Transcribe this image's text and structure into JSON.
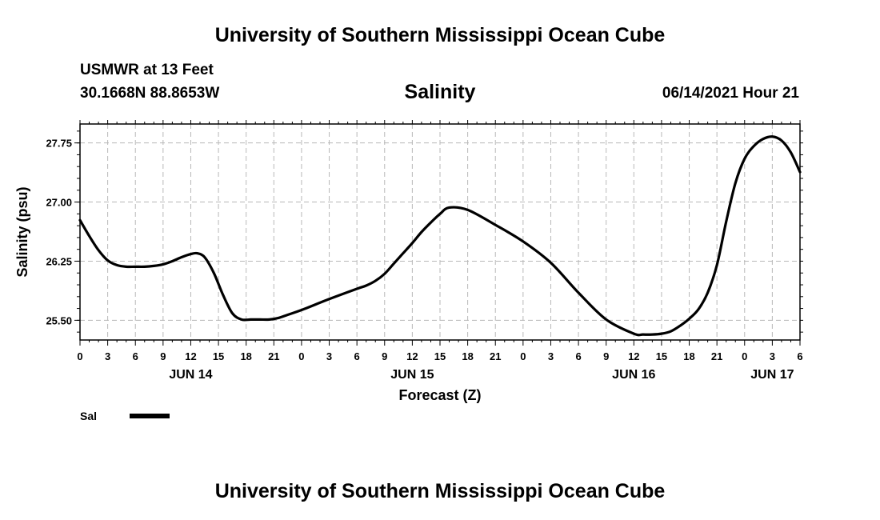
{
  "header": {
    "title": "University of Southern Mississippi Ocean Cube",
    "station": "USMWR at 13 Feet",
    "coords": "30.1668N  88.8653W",
    "timestamp": "06/14/2021 Hour 21"
  },
  "footer": {
    "title": "University of Southern Mississippi Ocean Cube"
  },
  "chart_data": {
    "type": "line",
    "title": "Salinity",
    "xlabel": "Forecast (Z)",
    "ylabel": "Salinity (psu)",
    "xlim": [
      0,
      78
    ],
    "ylim": [
      25.25,
      27.99
    ],
    "yticks": [
      25.5,
      26.25,
      27.0,
      27.75
    ],
    "ytick_labels": [
      "25.50",
      "26.25",
      "27.00",
      "27.75"
    ],
    "xticks": [
      0,
      3,
      6,
      9,
      12,
      15,
      18,
      21,
      24,
      27,
      30,
      33,
      36,
      39,
      42,
      45,
      48,
      51,
      54,
      57,
      60,
      63,
      66,
      69,
      72,
      75,
      78
    ],
    "xtick_labels": [
      "0",
      "3",
      "6",
      "9",
      "12",
      "15",
      "18",
      "21",
      "0",
      "3",
      "6",
      "9",
      "12",
      "15",
      "18",
      "21",
      "0",
      "3",
      "6",
      "9",
      "12",
      "15",
      "18",
      "21",
      "0",
      "3",
      "6"
    ],
    "day_labels": [
      {
        "label": "JUN 14",
        "at": 12
      },
      {
        "label": "JUN 15",
        "at": 36
      },
      {
        "label": "JUN 16",
        "at": 60
      },
      {
        "label": "JUN 17",
        "at": 75
      }
    ],
    "grid": true,
    "legend": "bottom-left",
    "series": [
      {
        "name": "Sal",
        "color": "#000000",
        "x": [
          0,
          1,
          2,
          3,
          4,
          5,
          6,
          7,
          8,
          9,
          10,
          11,
          12,
          12.7,
          13.5,
          14.5,
          15.5,
          16.5,
          17.5,
          18.5,
          19.5,
          20.5,
          21.5,
          22.5,
          24,
          27,
          30,
          31,
          32,
          33,
          34,
          35,
          36,
          37,
          38,
          39,
          40,
          42,
          45,
          48,
          51,
          54,
          57,
          60,
          61,
          62,
          63,
          64,
          65,
          66,
          67,
          68,
          69,
          70,
          71,
          72,
          73,
          74,
          75,
          76,
          77,
          78
        ],
        "values": [
          26.77,
          26.57,
          26.39,
          26.26,
          26.2,
          26.18,
          26.18,
          26.18,
          26.19,
          26.21,
          26.25,
          26.3,
          26.34,
          26.35,
          26.3,
          26.1,
          25.82,
          25.59,
          25.51,
          25.51,
          25.51,
          25.51,
          25.53,
          25.57,
          25.63,
          25.77,
          25.9,
          25.94,
          26.0,
          26.09,
          26.22,
          26.35,
          26.48,
          26.62,
          26.74,
          26.85,
          26.93,
          26.9,
          26.71,
          26.5,
          26.23,
          25.85,
          25.51,
          25.33,
          25.32,
          25.32,
          25.33,
          25.36,
          25.43,
          25.52,
          25.64,
          25.85,
          26.2,
          26.75,
          27.24,
          27.55,
          27.71,
          27.8,
          27.83,
          27.78,
          27.63,
          27.38
        ]
      }
    ]
  }
}
